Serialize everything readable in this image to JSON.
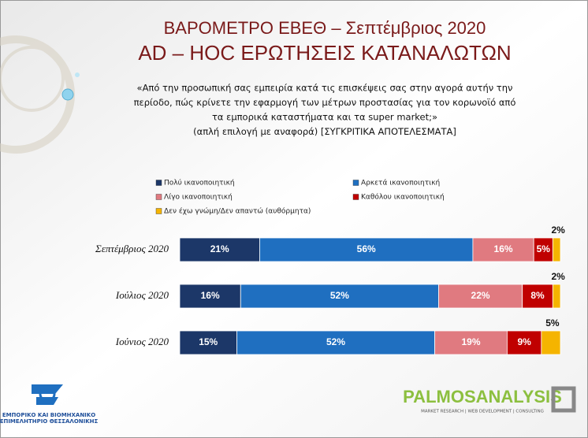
{
  "chart_data": {
    "type": "stacked-barh",
    "title": "ΒΑΡΟΜΕΤΡΟ ΕΒΕΘ – Σεπτέμβριος 2020",
    "subtitle": "AD – HOC ΕΡΩΤΗΣΕΙΣ ΚΑΤΑΝΑΛΩΤΩΝ",
    "question": [
      "«Από την προσωπική σας εμπειρία κατά τις επισκέψεις σας στην αγορά αυτήν την",
      "περίοδο, πώς κρίνετε την εφαρμογή των μέτρων προστασίας για τον κορωνοϊό από",
      "τα εμπορικά καταστήματα και τα super market;»",
      "(απλή επιλογή με αναφορά) [ΣΥΓΚΡΙΤΙΚΑ ΑΠΟΤΕΛΕΣΜΑΤΑ]"
    ],
    "categories": [
      "Σεπτέμβριος 2020",
      "Ιούλιος 2020",
      "Ιούνιος 2020"
    ],
    "xlim": [
      0,
      100
    ],
    "series": [
      {
        "name": "Πολύ ικανοποιητική",
        "color": "#1c3768",
        "values": [
          21,
          16,
          15
        ],
        "value_labels": [
          "21%",
          "16%",
          "15%"
        ]
      },
      {
        "name": "Αρκετά ικανοποιητική",
        "color": "#1f6fc0",
        "values": [
          56,
          52,
          52
        ],
        "value_labels": [
          "56%",
          "52%",
          "52%"
        ]
      },
      {
        "name": "Λίγο ικανοποιητική",
        "color": "#e07a80",
        "values": [
          16,
          22,
          19
        ],
        "value_labels": [
          "16%",
          "22%",
          "19%"
        ]
      },
      {
        "name": "Καθόλου ικανοποιητική",
        "color": "#c00000",
        "values": [
          5,
          8,
          9
        ],
        "value_labels": [
          "5%",
          "8%",
          "9%"
        ]
      },
      {
        "name": "Δεν έχω γνώμη/Δεν απαντώ (αυθόρμητα)",
        "color": "#f5b400",
        "values": [
          2,
          2,
          5
        ],
        "value_labels": [
          "2%",
          "2%",
          "5%"
        ]
      }
    ],
    "logos": [
      "ΕΜΠΟΡΙΚΟ ΚΑΙ ΒΙΟΜΗΧΑΝΙΚΟ",
      "ΕΠΙΜΕΛΗΤΗΡΙΟ ΘΕΣΣΑΛΟΝΙΚΗΣ",
      "PALMOSANALYSIS",
      "MARKET RESEARCH | WEB DEVELOPMENT | CONSULTING"
    ]
  }
}
